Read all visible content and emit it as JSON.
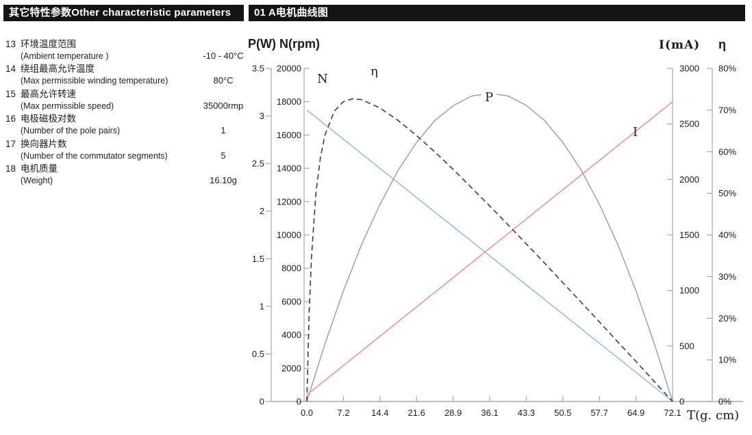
{
  "header": {
    "left_banner": "其它特性参数Other characteristic parameters",
    "right_banner": "01 A电机曲线图"
  },
  "parameters": [
    {
      "no": "13",
      "cn": "环境温度范围",
      "en": "(Ambient  temperature )",
      "value": "-10 - 40°C"
    },
    {
      "no": "14",
      "cn": "绕组最高允许温度",
      "en": "(Max permissible winding temperature)",
      "value": "80°C"
    },
    {
      "no": "15",
      "cn": "最高允许转速",
      "en": "(Max permissible speed)",
      "value": "35000rmp"
    },
    {
      "no": "16",
      "cn": "电极磁极对数",
      "en": "(Number of  the pole pairs)",
      "value": "1"
    },
    {
      "no": "17",
      "cn": "换向器片数",
      "en": "(Number of the  commutator segments)",
      "value": "5"
    },
    {
      "no": "18",
      "cn": "电机质量",
      "en": "(Weight)",
      "value": "16.10g"
    }
  ],
  "chart_data": {
    "type": "line",
    "title": "01 A电机曲线图",
    "left_title": "P(W) N(rpm)",
    "x_axis": {
      "label": "T(g. cm)",
      "range": [
        0,
        72.1
      ],
      "ticks": [
        "0.0",
        "7.2",
        "14.4",
        "21.6",
        "28.9",
        "36.1",
        "43.3",
        "50.5",
        "57.7",
        "64.9",
        "72.1"
      ]
    },
    "left_axis_p": {
      "label": "P(W)",
      "range": [
        0,
        3.5
      ],
      "ticks": [
        "3.5",
        "3",
        "2.5",
        "2",
        "1.5",
        "1",
        "0.5",
        "0"
      ]
    },
    "left_axis_n": {
      "label": "N(rpm)",
      "range": [
        0,
        20000
      ],
      "ticks": [
        "20000",
        "18000",
        "16000",
        "14000",
        "12000",
        "10000",
        "8000",
        "6000",
        "4000",
        "2000",
        "0"
      ]
    },
    "right_axis_i": {
      "label": "I(mA)",
      "range": [
        0,
        3000
      ],
      "ticks": [
        "3000",
        "2500",
        "2000",
        "1500",
        "1000",
        "500",
        "0"
      ]
    },
    "right_axis_eta": {
      "label": "η",
      "range": [
        0,
        80
      ],
      "ticks": [
        "80%",
        "70%",
        "60%",
        "50%",
        "40%",
        "30%",
        "20%",
        "10%",
        "0%"
      ]
    },
    "grid": false,
    "legend": "curve labels inline",
    "series": [
      {
        "name": "N",
        "unit": "rpm",
        "axis": "n",
        "color": "#8eb4e2",
        "style": "solid",
        "points": [
          [
            0,
            17500
          ],
          [
            72.1,
            0
          ]
        ]
      },
      {
        "name": "P",
        "unit": "W",
        "axis": "p",
        "color": "#9b9b9b",
        "style": "solid",
        "points": [
          [
            0,
            0
          ],
          [
            3.6,
            0.61
          ],
          [
            7.2,
            1.16
          ],
          [
            10.8,
            1.65
          ],
          [
            14.4,
            2.07
          ],
          [
            18,
            2.43
          ],
          [
            21.6,
            2.72
          ],
          [
            25.2,
            2.95
          ],
          [
            28.9,
            3.11
          ],
          [
            32.5,
            3.21
          ],
          [
            36.1,
            3.24
          ],
          [
            39.7,
            3.21
          ],
          [
            43.3,
            3.11
          ],
          [
            46.9,
            2.95
          ],
          [
            50.5,
            2.72
          ],
          [
            54.1,
            2.43
          ],
          [
            57.7,
            2.07
          ],
          [
            61.3,
            1.65
          ],
          [
            64.9,
            1.16
          ],
          [
            68.5,
            0.61
          ],
          [
            72.1,
            0
          ]
        ]
      },
      {
        "name": "I",
        "unit": "mA",
        "axis": "i",
        "color": "#ef8a7c",
        "style": "solid",
        "points": [
          [
            0,
            60
          ],
          [
            72.1,
            2700
          ]
        ]
      },
      {
        "name": "η",
        "unit": "%",
        "axis": "eta",
        "color": "#3c3c3c",
        "style": "dashed",
        "points": [
          [
            0,
            0
          ],
          [
            0.45,
            21
          ],
          [
            0.9,
            34.4
          ],
          [
            1.8,
            50.1
          ],
          [
            2.7,
            58.8
          ],
          [
            3.6,
            64.1
          ],
          [
            5.4,
            69.7
          ],
          [
            7.2,
            72
          ],
          [
            9,
            72.7
          ],
          [
            10.8,
            72.5
          ],
          [
            14.4,
            70.5
          ],
          [
            18,
            67.5
          ],
          [
            21.6,
            63.9
          ],
          [
            25.2,
            60
          ],
          [
            28.9,
            55.7
          ],
          [
            32.5,
            51.3
          ],
          [
            36.1,
            46.9
          ],
          [
            39.7,
            42.4
          ],
          [
            43.3,
            37.8
          ],
          [
            46.9,
            33.2
          ],
          [
            50.5,
            28.5
          ],
          [
            54.1,
            23.8
          ],
          [
            57.7,
            19.1
          ],
          [
            61.3,
            14.3
          ],
          [
            64.9,
            9.6
          ],
          [
            68.5,
            4.8
          ],
          [
            72.1,
            0
          ]
        ]
      }
    ]
  }
}
